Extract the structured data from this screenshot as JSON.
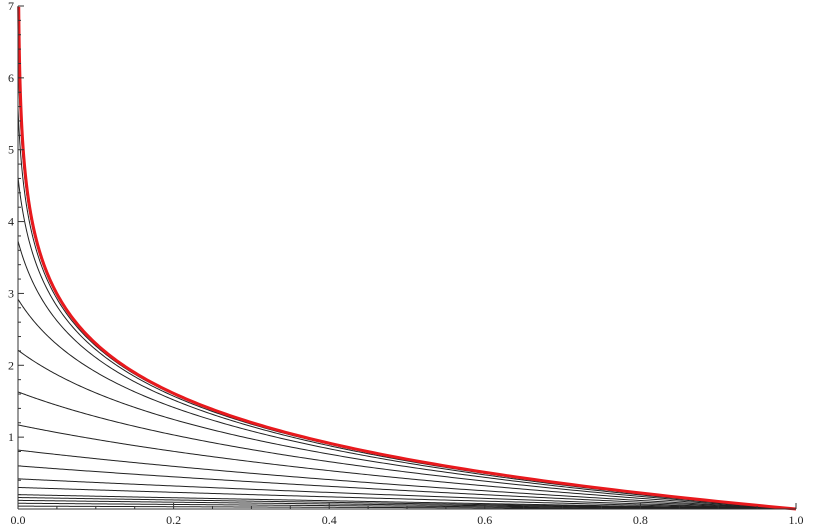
{
  "chart_data": {
    "type": "line",
    "title": "",
    "xlabel": "",
    "ylabel": "",
    "xlim": [
      0,
      1
    ],
    "ylim": [
      0,
      7
    ],
    "x_ticks": [
      "0.0",
      "0.2",
      "0.4",
      "0.6",
      "0.8",
      "1.0"
    ],
    "y_ticks": [
      "1",
      "2",
      "3",
      "4",
      "5",
      "6",
      "7"
    ],
    "grid": false,
    "legend": "none",
    "envelope": {
      "color": "#e8191d",
      "formula": "y = -ln(x)",
      "x": [
        0.001,
        0.01,
        0.02,
        0.05,
        0.1,
        0.2,
        0.3,
        0.4,
        0.5,
        0.6,
        0.7,
        0.8,
        0.9,
        1.0
      ],
      "y": [
        6.91,
        4.61,
        3.91,
        3.0,
        2.3,
        1.61,
        1.2,
        0.92,
        0.69,
        0.51,
        0.36,
        0.22,
        0.11,
        0.0
      ]
    },
    "family_color": "#222222",
    "family_note": "y = ln(1+c)-ln(x+c)",
    "family_y_at_x0": [
      0.04,
      0.08,
      0.12,
      0.16,
      0.2,
      0.3,
      0.42,
      0.6,
      0.82,
      1.17,
      1.63,
      2.21,
      2.92,
      3.73,
      4.62,
      5.58,
      6.55
    ]
  }
}
